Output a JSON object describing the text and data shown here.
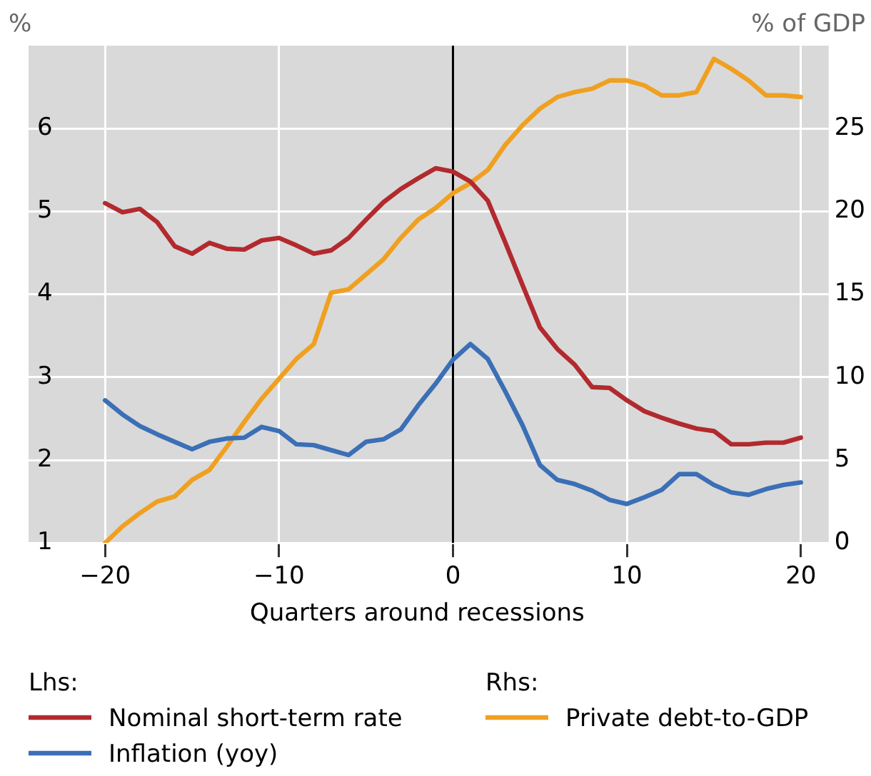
{
  "chart_data": {
    "type": "line",
    "xlabel": "Quarters around recessions",
    "ylabel": "%",
    "y2label": "% of GDP",
    "x": [
      -20,
      -19,
      -18,
      -17,
      -16,
      -15,
      -14,
      -13,
      -12,
      -11,
      -10,
      -9,
      -8,
      -7,
      -6,
      -5,
      -4,
      -3,
      -2,
      -1,
      0,
      1,
      2,
      3,
      4,
      5,
      6,
      7,
      8,
      9,
      10,
      11,
      12,
      13,
      14,
      15,
      16,
      17,
      18,
      19,
      20
    ],
    "series": [
      {
        "name": "Nominal short-term rate",
        "color": "#b22a2e",
        "values": [
          5.1,
          4.99,
          5.03,
          4.87,
          4.58,
          4.49,
          4.62,
          4.55,
          4.54,
          4.65,
          4.68,
          4.59,
          4.49,
          4.53,
          4.68,
          4.9,
          5.11,
          5.27,
          5.4,
          5.52,
          5.48,
          5.36,
          5.13,
          4.63,
          4.11,
          3.6,
          3.34,
          3.15,
          2.88,
          2.87,
          2.72,
          2.59,
          2.51,
          2.44,
          2.38,
          2.35,
          2.19,
          2.19,
          2.21,
          2.21,
          2.27
        ]
      },
      {
        "name": "Inflation (yoy)",
        "color": "#3b6fb6",
        "values": [
          2.72,
          2.55,
          2.41,
          2.31,
          2.22,
          2.13,
          2.22,
          2.26,
          2.27,
          2.4,
          2.35,
          2.19,
          2.18,
          2.12,
          2.06,
          2.22,
          2.25,
          2.37,
          2.66,
          2.92,
          3.21,
          3.4,
          3.22,
          2.83,
          2.42,
          1.94,
          1.76,
          1.71,
          1.63,
          1.52,
          1.47,
          1.55,
          1.64,
          1.83,
          1.83,
          1.7,
          1.61,
          1.58,
          1.65,
          1.7,
          1.73
        ]
      },
      {
        "name": "Private debt-to-GDP",
        "color": "#f0a020",
        "axis": "y2",
        "values": [
          0.0,
          1.0,
          1.8,
          2.5,
          2.8,
          3.8,
          4.4,
          5.8,
          7.3,
          8.7,
          9.9,
          11.1,
          12.0,
          15.1,
          15.3,
          16.2,
          17.1,
          18.4,
          19.5,
          20.2,
          21.1,
          21.7,
          22.5,
          24.0,
          25.2,
          26.2,
          26.9,
          27.2,
          27.4,
          27.9,
          27.9,
          27.6,
          27.0,
          27.0,
          27.2,
          29.2,
          28.6,
          27.9,
          27.0,
          27.0,
          26.9
        ]
      }
    ],
    "xlim": [
      -24.4,
      21.6
    ],
    "xticks": [
      {
        "value": -20,
        "label": "−20"
      },
      {
        "value": -10,
        "label": "−10"
      },
      0,
      10,
      20
    ],
    "ylim": [
      1,
      7
    ],
    "yticks": [
      1,
      2,
      3,
      4,
      5,
      6
    ],
    "y2lim": [
      0,
      30
    ],
    "y2ticks": [
      0,
      5,
      10,
      15,
      20,
      25
    ],
    "ref_lines": [
      {
        "axis": "x",
        "value": 0,
        "color": "#000000"
      }
    ],
    "annotations": [
      "Lhs:",
      "Rhs:"
    ],
    "grid": true,
    "legend": "bottom",
    "marker": "none",
    "line_style": "solid"
  }
}
